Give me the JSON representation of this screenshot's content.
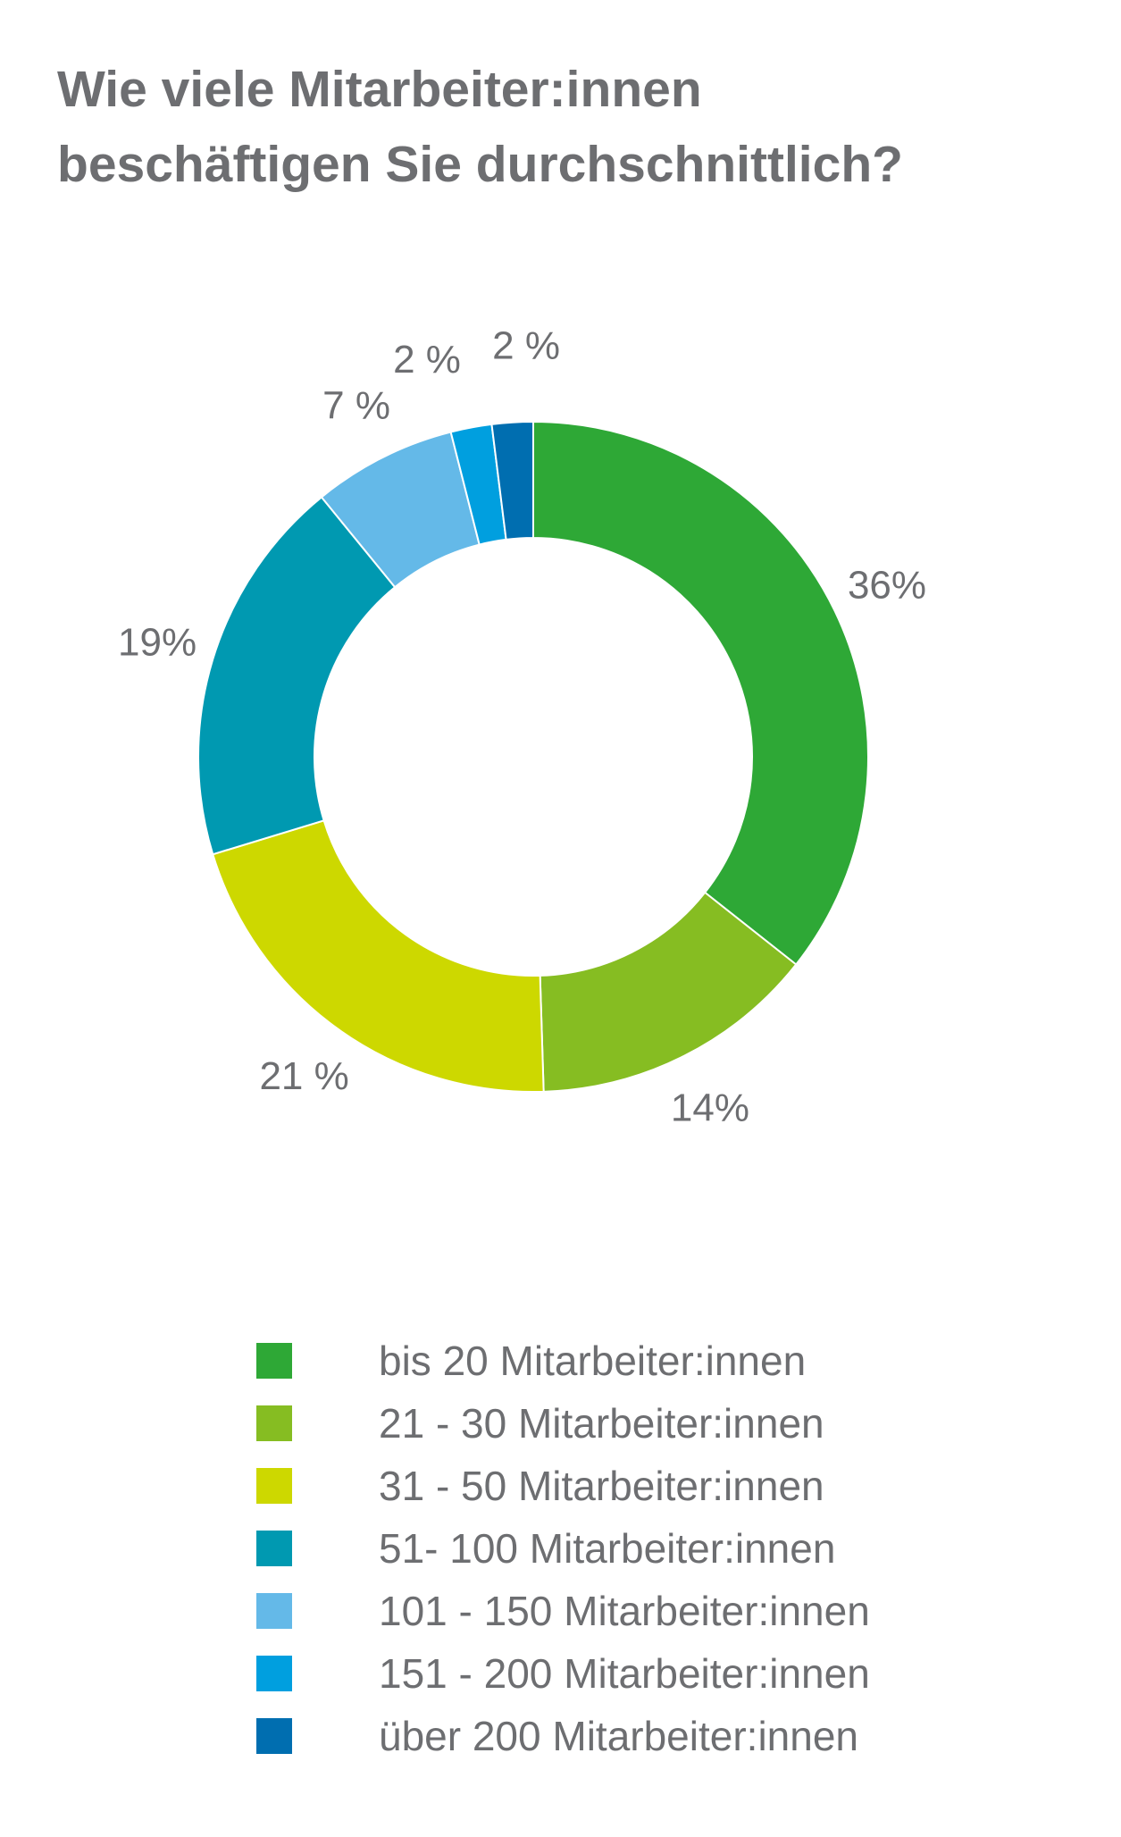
{
  "title_lines": [
    "Wie viele Mitarbeiter:innen",
    "beschäftigen Sie durchschnittlich?"
  ],
  "chart_data": {
    "type": "pie",
    "variant": "donut",
    "title": "Wie viele Mitarbeiter:innen beschäftigen Sie durchschnittlich?",
    "unit": "%",
    "legend_position": "bottom",
    "slices": [
      {
        "label": "bis 20 Mitarbeiter:innen",
        "value": 36,
        "data_label": "36%",
        "color": "#2ea836"
      },
      {
        "label": "21 - 30 Mitarbeiter:innen",
        "value": 14,
        "data_label": "14%",
        "color": "#86bd22"
      },
      {
        "label": "31 - 50 Mitarbeiter:innen",
        "value": 21,
        "data_label": "21 %",
        "color": "#cdd800"
      },
      {
        "label": "51- 100 Mitarbeiter:innen",
        "value": 19,
        "data_label": "19%",
        "color": "#0099b1"
      },
      {
        "label": "101 - 150 Mitarbeiter:innen",
        "value": 7,
        "data_label": "7 %",
        "color": "#64b9e8"
      },
      {
        "label": "151 - 200 Mitarbeiter:innen",
        "value": 2,
        "data_label": "2 %",
        "color": "#009fdf"
      },
      {
        "label": "über 200 Mitarbeiter:innen",
        "value": 2,
        "data_label": "2 %",
        "color": "#006eb0"
      }
    ]
  }
}
